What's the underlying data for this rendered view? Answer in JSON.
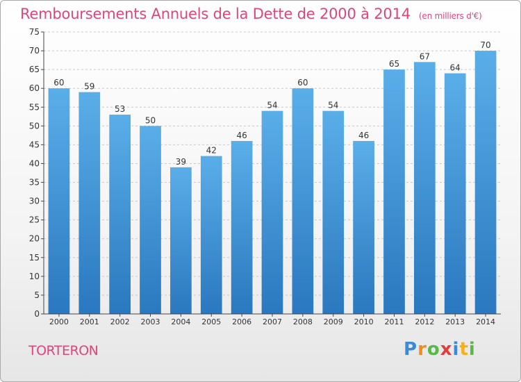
{
  "header": {
    "title": "Remboursements Annuels de la Dette de 2000 à 2014",
    "subtitle": "(en milliers d'€)"
  },
  "footer": {
    "place": "TORTERON",
    "logo_text": "Proxiti"
  },
  "colors": {
    "accent": "#e0457a",
    "bar_top": "#5aaee8",
    "bar_bottom": "#2a78bf",
    "grid": "#c8c8c8",
    "axis": "#444444"
  },
  "chart_data": {
    "type": "bar",
    "title": "Remboursements Annuels de la Dette de 2000 à 2014",
    "subtitle": "(en milliers d'€)",
    "xlabel": "",
    "ylabel": "",
    "categories": [
      "2000",
      "2001",
      "2002",
      "2003",
      "2004",
      "2005",
      "2006",
      "2007",
      "2008",
      "2009",
      "2010",
      "2011",
      "2012",
      "2013",
      "2014"
    ],
    "values": [
      60,
      59,
      53,
      50,
      39,
      42,
      46,
      54,
      60,
      54,
      46,
      65,
      67,
      64,
      70
    ],
    "ylim": [
      0,
      75
    ],
    "yticks": [
      0,
      5,
      10,
      15,
      20,
      25,
      30,
      35,
      40,
      45,
      50,
      55,
      60,
      65,
      70,
      75
    ],
    "grid": true,
    "data_labels": true
  }
}
